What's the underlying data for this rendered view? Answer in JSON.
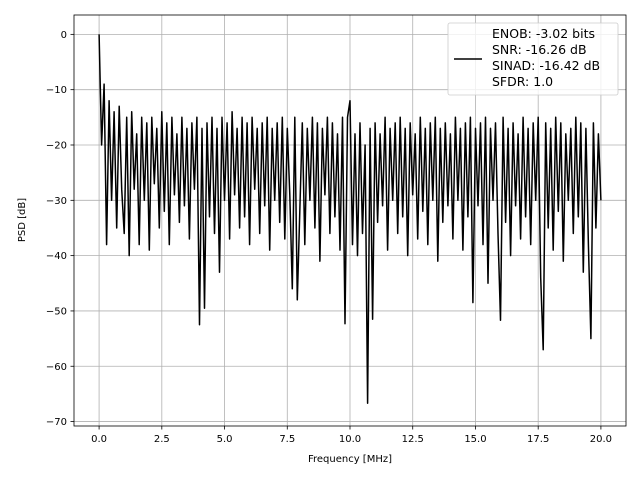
{
  "chart_data": {
    "type": "line",
    "title": "",
    "xlabel": "Frequency [MHz]",
    "ylabel": "PSD [dB]",
    "xlim": [
      -1,
      21
    ],
    "ylim": [
      -70.8,
      3.5
    ],
    "grid": true,
    "x_ticks": [
      0,
      2.5,
      5,
      7.5,
      10,
      12.5,
      15,
      17.5,
      20
    ],
    "x_tick_labels": [
      "0.0",
      "2.5",
      "5.0",
      "7.5",
      "10.0",
      "12.5",
      "15.0",
      "17.5",
      "20.0"
    ],
    "y_ticks": [
      0,
      -10,
      -20,
      -30,
      -40,
      -50,
      -60,
      -70
    ],
    "y_tick_labels": [
      "0",
      "−10",
      "−20",
      "−30",
      "−40",
      "−50",
      "−60",
      "−70"
    ],
    "legend": {
      "placement": "top-right",
      "lines": [
        "ENOB: -3.02 bits",
        "SNR: -16.26 dB",
        "SINAD: -16.42 dB",
        "SFDR: 1.0"
      ]
    },
    "series": [
      {
        "name": "PSD",
        "color": "#000000",
        "x_start": 0,
        "x_step": 0.1,
        "values": [
          0,
          -20,
          -9,
          -38,
          -12,
          -30,
          -14,
          -35,
          -13,
          -28,
          -36,
          -15,
          -40,
          -14,
          -28,
          -18,
          -38,
          -15,
          -30,
          -16,
          -39,
          -15,
          -27,
          -17,
          -35,
          -14,
          -32,
          -16,
          -38,
          -15,
          -29,
          -18,
          -34,
          -15,
          -31,
          -17,
          -37,
          -16,
          -28,
          -15,
          -52.5,
          -17,
          -49.5,
          -16,
          -33,
          -15,
          -36,
          -17,
          -43,
          -15,
          -30,
          -16,
          -37,
          -14,
          -29,
          -17,
          -35,
          -15,
          -33,
          -16,
          -38,
          -15,
          -28,
          -17,
          -36,
          -16,
          -31,
          -15,
          -39,
          -17,
          -30,
          -16,
          -34,
          -15,
          -37,
          -17,
          -29,
          -46,
          -15,
          -48,
          -32,
          -16,
          -38,
          -17,
          -30,
          -15,
          -35,
          -16,
          -41,
          -17,
          -29,
          -15,
          -36,
          -16,
          -33,
          -18,
          -39,
          -15,
          -52.3,
          -15,
          -12,
          -38,
          -18,
          -40,
          -16,
          -36,
          -20,
          -66.7,
          -17,
          -51.5,
          -16,
          -34,
          -18,
          -31,
          -15,
          -39,
          -17,
          -30,
          -16,
          -36,
          -15,
          -33,
          -17,
          -40,
          -16,
          -29,
          -18,
          -37,
          -15,
          -32,
          -17,
          -38,
          -16,
          -30,
          -15,
          -41,
          -17,
          -34,
          -16,
          -31,
          -18,
          -37,
          -15,
          -30,
          -17,
          -39,
          -16,
          -33,
          -15,
          -48.5,
          -17,
          -31,
          -16,
          -38,
          -15,
          -45,
          -17,
          -30,
          -16,
          -36,
          -51.7,
          -15,
          -34,
          -17,
          -40,
          -16,
          -31,
          -18,
          -37,
          -15,
          -33,
          -17,
          -38,
          -16,
          -30,
          -15,
          -44,
          -57,
          -16,
          -35,
          -17,
          -39,
          -15,
          -32,
          -16,
          -41,
          -18,
          -30,
          -17,
          -36,
          -15,
          -33,
          -16,
          -43,
          -17,
          -38,
          -55,
          -16,
          -35,
          -18,
          -30
        ]
      }
    ]
  }
}
